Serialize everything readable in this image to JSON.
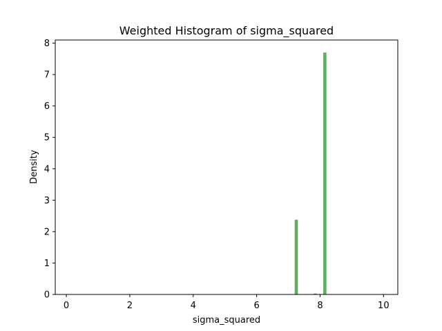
{
  "chart_data": {
    "type": "bar",
    "title": "Weighted Histogram of sigma_squared",
    "xlabel": "sigma_squared",
    "ylabel": "Density",
    "xlim": [
      -0.35,
      10.45
    ],
    "ylim": [
      0,
      8.1
    ],
    "xticks": [
      0,
      2,
      4,
      6,
      8,
      10
    ],
    "yticks": [
      0,
      1,
      2,
      3,
      4,
      5,
      6,
      7,
      8
    ],
    "bin_width": 0.1,
    "bar_color": "#5aa85a",
    "bins": [
      {
        "x_start": 7.2,
        "x_end": 7.3,
        "value": 2.38
      },
      {
        "x_start": 7.8,
        "x_end": 7.9,
        "value": 0.03
      },
      {
        "x_start": 8.1,
        "x_end": 8.2,
        "value": 7.7
      }
    ],
    "grid": false,
    "legend": "none"
  }
}
